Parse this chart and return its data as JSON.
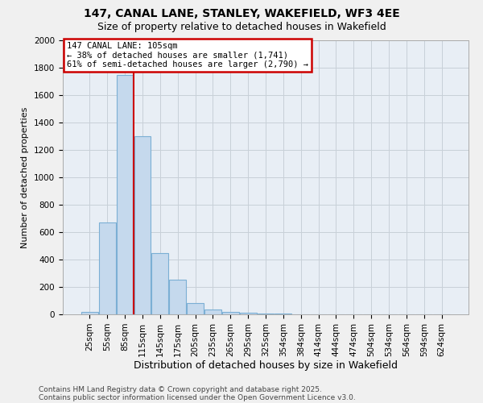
{
  "title": "147, CANAL LANE, STANLEY, WAKEFIELD, WF3 4EE",
  "subtitle": "Size of property relative to detached houses in Wakefield",
  "xlabel": "Distribution of detached houses by size in Wakefield",
  "ylabel": "Number of detached properties",
  "categories": [
    "25sqm",
    "55sqm",
    "85sqm",
    "115sqm",
    "145sqm",
    "175sqm",
    "205sqm",
    "235sqm",
    "265sqm",
    "295sqm",
    "325sqm",
    "354sqm",
    "384sqm",
    "414sqm",
    "444sqm",
    "474sqm",
    "504sqm",
    "534sqm",
    "564sqm",
    "594sqm",
    "624sqm"
  ],
  "values": [
    20,
    670,
    1750,
    1300,
    450,
    255,
    80,
    35,
    18,
    12,
    5,
    3,
    2,
    1,
    1,
    0,
    1,
    0,
    0,
    0,
    0
  ],
  "bar_color": "#c5d9ed",
  "bar_edge_color": "#7bafd4",
  "vline_index": 2.5,
  "annotation_title": "147 CANAL LANE: 105sqm",
  "annotation_line1": "← 38% of detached houses are smaller (1,741)",
  "annotation_line2": "61% of semi-detached houses are larger (2,790) →",
  "annotation_box_facecolor": "#ffffff",
  "annotation_box_edgecolor": "#cc0000",
  "vline_color": "#cc0000",
  "ylim": [
    0,
    2000
  ],
  "yticks": [
    0,
    200,
    400,
    600,
    800,
    1000,
    1200,
    1400,
    1600,
    1800,
    2000
  ],
  "footnote1": "Contains HM Land Registry data © Crown copyright and database right 2025.",
  "footnote2": "Contains public sector information licensed under the Open Government Licence v3.0.",
  "background_color": "#f0f0f0",
  "plot_bg_color": "#e8eef5",
  "grid_color": "#c8d0d8",
  "title_fontsize": 10,
  "subtitle_fontsize": 9,
  "xlabel_fontsize": 9,
  "ylabel_fontsize": 8,
  "tick_fontsize": 7.5,
  "footnote_fontsize": 6.5
}
